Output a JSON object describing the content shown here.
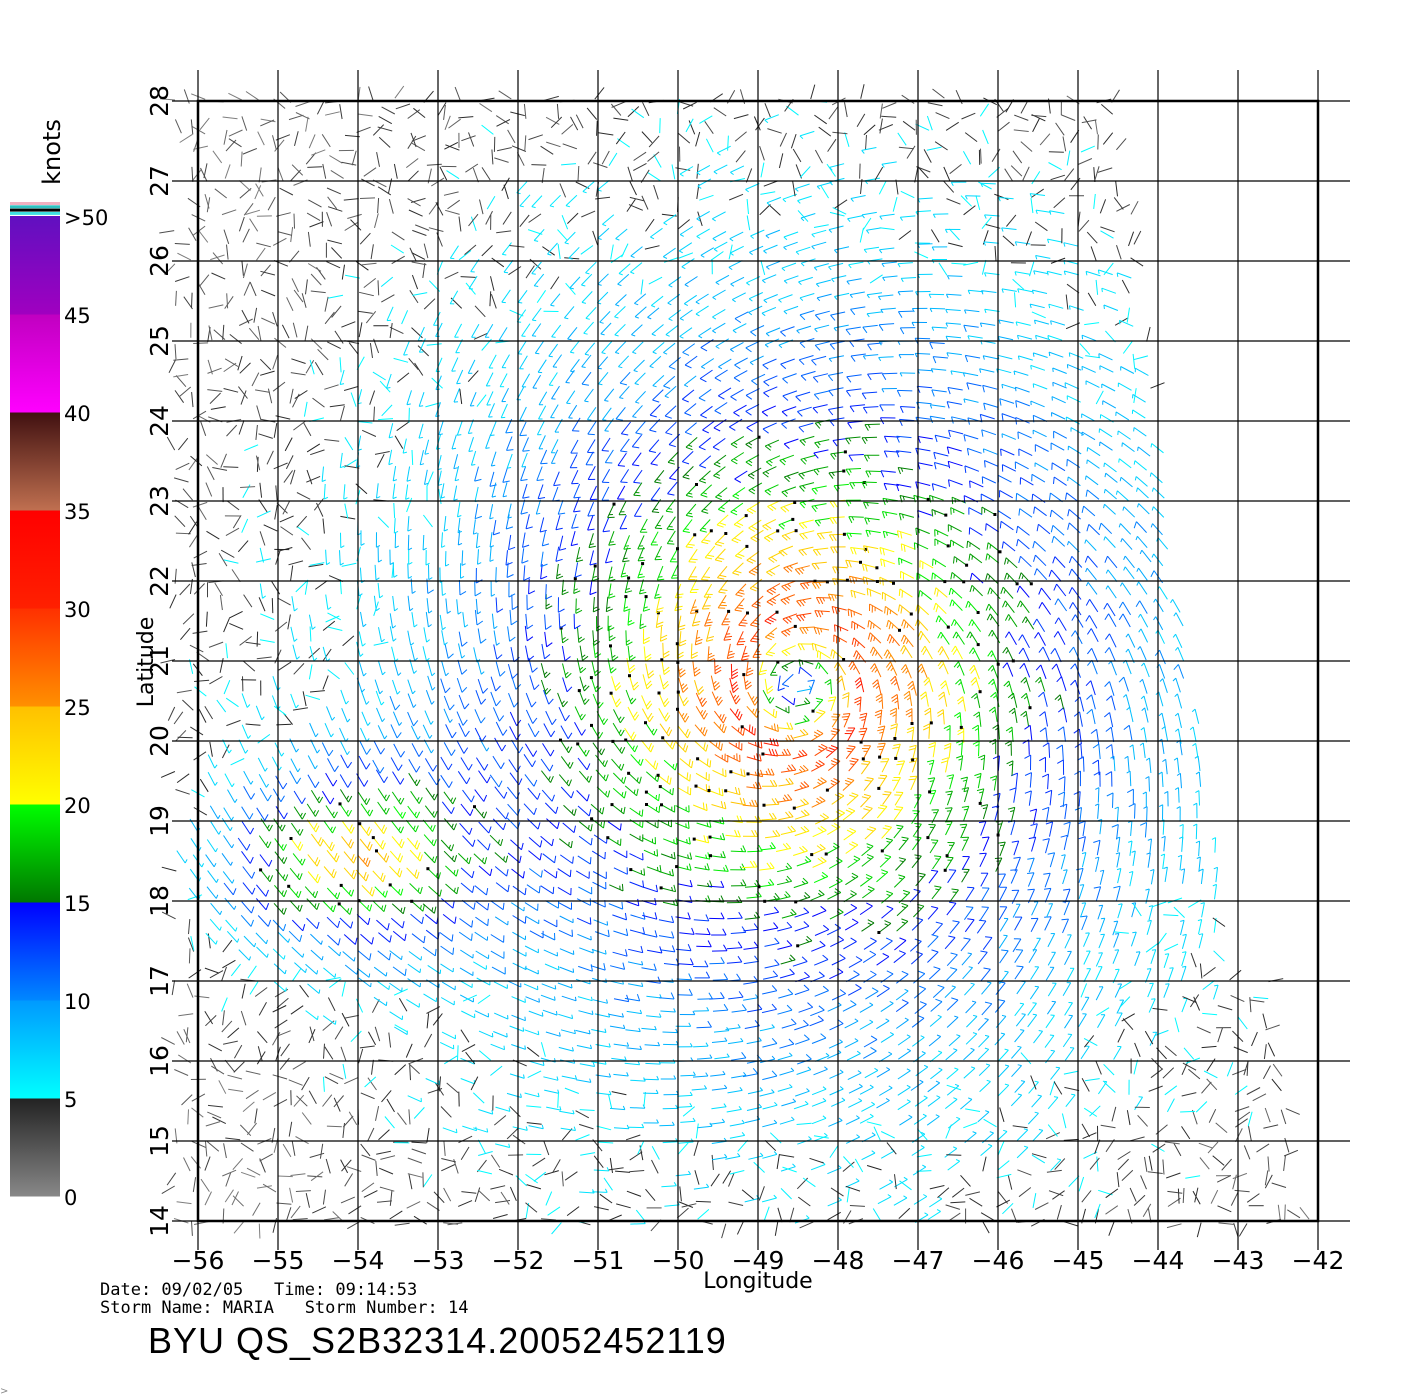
{
  "chart_data": {
    "type": "wind-barb-map",
    "xlabel": "Longitude",
    "ylabel": "Latitude",
    "xlim": [
      -56,
      -42
    ],
    "ylim": [
      14,
      28
    ],
    "x_ticks": [
      "−56",
      "−55",
      "−54",
      "−53",
      "−52",
      "−51",
      "−50",
      "−49",
      "−48",
      "−47",
      "−46",
      "−45",
      "−44",
      "−43",
      "−42"
    ],
    "y_ticks": [
      "14",
      "15",
      "16",
      "17",
      "18",
      "19",
      "20",
      "21",
      "22",
      "23",
      "24",
      "25",
      "26",
      "27",
      "28"
    ],
    "grid": true,
    "storm_center": {
      "lon": -48.5,
      "lat": 20.7
    },
    "colorbar": {
      "title": "knots",
      "labels": [
        "0",
        "5",
        "10",
        "15",
        "20",
        "25",
        "30",
        "35",
        "40",
        "45",
        ">50"
      ],
      "segments": [
        {
          "from": 0,
          "to": 5,
          "colors": [
            "#888888",
            "#222222"
          ]
        },
        {
          "from": 5,
          "to": 10,
          "colors": [
            "#00ffff",
            "#0099ff"
          ]
        },
        {
          "from": 10,
          "to": 15,
          "colors": [
            "#0088ff",
            "#0000ff"
          ]
        },
        {
          "from": 15,
          "to": 20,
          "colors": [
            "#007700",
            "#00ff00"
          ]
        },
        {
          "from": 20,
          "to": 25,
          "colors": [
            "#ffff00",
            "#ffc000"
          ]
        },
        {
          "from": 25,
          "to": 30,
          "colors": [
            "#ff9000",
            "#ff3000"
          ]
        },
        {
          "from": 30,
          "to": 35,
          "colors": [
            "#ff2000",
            "#ff0000"
          ]
        },
        {
          "from": 35,
          "to": 40,
          "colors": [
            "#c07050",
            "#401010"
          ]
        },
        {
          "from": 40,
          "to": 45,
          "colors": [
            "#ff00ff",
            "#c000c0"
          ]
        },
        {
          "from": 45,
          "to": 50,
          "colors": [
            "#a000c0",
            "#6010c0"
          ]
        }
      ]
    }
  },
  "info": {
    "date_line": "Date: 09/02/05   Time: 09:14:53",
    "storm_line": "Storm Name: MARIA   Storm Number: 14",
    "product": "BYU QS_S2B32314.20052452119"
  }
}
